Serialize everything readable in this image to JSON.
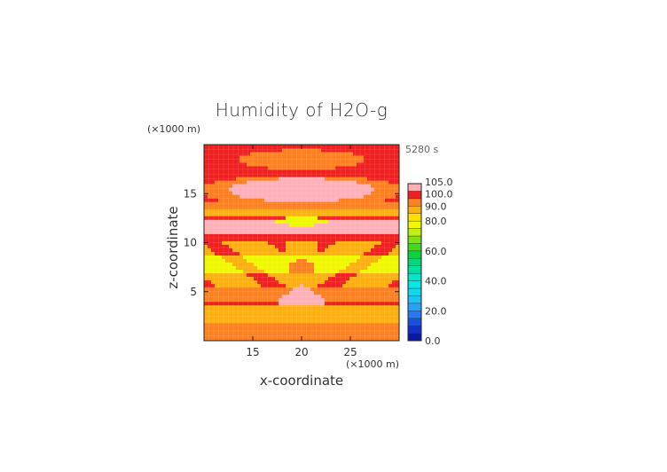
{
  "title": "Humidity of H2O-g",
  "time_label": "5280 s",
  "z_unit": "(×1000 m)",
  "x_unit": "(×1000 m)",
  "chart_data": {
    "type": "heatmap",
    "title": "Humidity of H2O-g",
    "xlabel": "x-coordinate",
    "ylabel": "z-coordinate",
    "xlim": [
      10,
      30
    ],
    "ylim": [
      0,
      20
    ],
    "x_ticks": [
      15,
      20,
      25
    ],
    "y_ticks": [
      5,
      10,
      15
    ],
    "colorbar": {
      "range": [
        0,
        105
      ],
      "labels": [
        "105.0",
        "100.0",
        "90.0",
        "80.0",
        "60.0",
        "40.0",
        "20.0",
        "0.0"
      ],
      "label_values": [
        105,
        100,
        90,
        80,
        60,
        40,
        20,
        0
      ],
      "bands": [
        {
          "from": 0,
          "to": 5,
          "color": "#0a18a8"
        },
        {
          "from": 5,
          "to": 10,
          "color": "#1030c8"
        },
        {
          "from": 10,
          "to": 15,
          "color": "#1a50e0"
        },
        {
          "from": 15,
          "to": 20,
          "color": "#2a78f0"
        },
        {
          "from": 20,
          "to": 25,
          "color": "#2aa0f8"
        },
        {
          "from": 25,
          "to": 30,
          "color": "#20c0f8"
        },
        {
          "from": 30,
          "to": 35,
          "color": "#10d8f0"
        },
        {
          "from": 35,
          "to": 40,
          "color": "#00e8e8"
        },
        {
          "from": 40,
          "to": 45,
          "color": "#00e8c8"
        },
        {
          "from": 45,
          "to": 50,
          "color": "#00e0a0"
        },
        {
          "from": 50,
          "to": 55,
          "color": "#00d878"
        },
        {
          "from": 55,
          "to": 60,
          "color": "#10d040"
        },
        {
          "from": 60,
          "to": 65,
          "color": "#40d820"
        },
        {
          "from": 65,
          "to": 70,
          "color": "#80e010"
        },
        {
          "from": 70,
          "to": 75,
          "color": "#c0f010"
        },
        {
          "from": 75,
          "to": 80,
          "color": "#f0f800"
        },
        {
          "from": 80,
          "to": 85,
          "color": "#ffe000"
        },
        {
          "from": 85,
          "to": 90,
          "color": "#ffb010"
        },
        {
          "from": 90,
          "to": 95,
          "color": "#ff8020"
        },
        {
          "from": 95,
          "to": 100,
          "color": "#f02020"
        },
        {
          "from": 100,
          "to": 105,
          "color": "#ffb0b8"
        }
      ],
      "top_color": "#ffffff"
    },
    "field": {
      "description_levels": "humidity percent at each (x, z) computed from the contour regions",
      "background_value": 97,
      "regions": [
        {
          "shape": "ellipse",
          "cx": 20,
          "cz": 18.5,
          "rx": 6.5,
          "rz": 1.0,
          "value": 92
        },
        {
          "shape": "ellipse",
          "cx": 20,
          "cz": 15.3,
          "rx": 10.5,
          "rz": 1.6,
          "value": 92
        },
        {
          "shape": "ellipse",
          "cx": 20,
          "cz": 15.4,
          "rx": 7.5,
          "rz": 1.2,
          "value": 102
        },
        {
          "shape": "band",
          "z0": 13.4,
          "z1": 14.2,
          "value": 92
        },
        {
          "shape": "band",
          "z0": 12.6,
          "z1": 13.4,
          "value": 87
        },
        {
          "shape": "band",
          "z0": 11.0,
          "z1": 12.5,
          "value": 102
        },
        {
          "shape": "ellipse",
          "cx": 20,
          "cz": 12.2,
          "rx": 2.6,
          "rz": 0.45,
          "value": 78
        },
        {
          "shape": "rect",
          "x0": 18.3,
          "x1": 21.6,
          "z0": 8.7,
          "z1": 11.0,
          "value": 97
        },
        {
          "shape": "band",
          "z0": 8.6,
          "z1": 10.2,
          "value": 87
        },
        {
          "shape": "band",
          "z0": 7.0,
          "z1": 8.6,
          "value": 78
        },
        {
          "shape": "ellipse",
          "cx": 20,
          "cz": 7.3,
          "rx": 1.4,
          "rz": 1.0,
          "value": 92
        },
        {
          "shape": "band",
          "z0": 5.5,
          "z1": 7.0,
          "value": 87
        },
        {
          "shape": "band",
          "z0": 4.0,
          "z1": 5.5,
          "value": 92
        },
        {
          "shape": "diamond",
          "cx": 20,
          "cz": 4.0,
          "rx": 2.6,
          "rz": 1.9,
          "value": 102
        },
        {
          "shape": "band",
          "z0": 2.0,
          "z1": 3.5,
          "value": 87
        },
        {
          "shape": "band",
          "z0": 0.0,
          "z1": 2.0,
          "value": 92
        }
      ]
    }
  }
}
